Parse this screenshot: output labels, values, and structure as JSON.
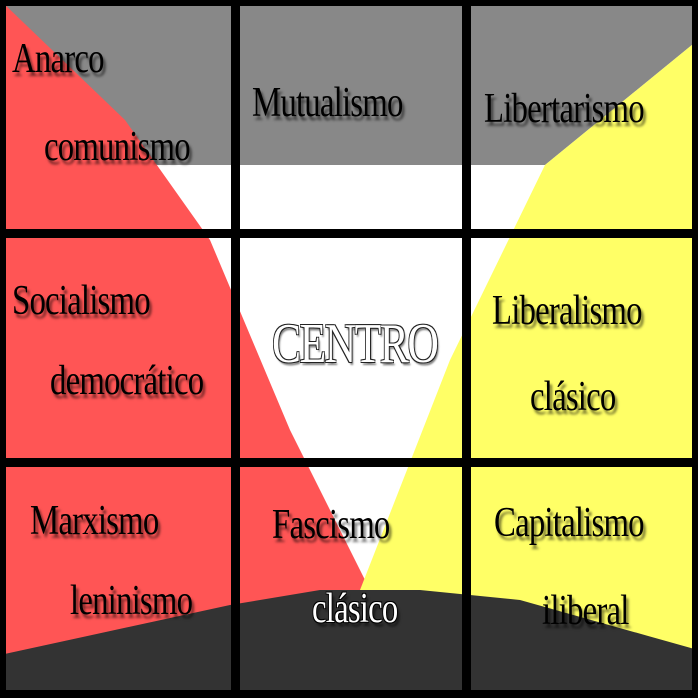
{
  "colors": {
    "red": "#ff5555",
    "yellow": "#ffff66",
    "gray": "#888888",
    "white": "#ffffff",
    "dark": "#333333",
    "grid": "#000000"
  },
  "cells": {
    "top_left": {
      "line1": "Anarco",
      "line2": "comunismo"
    },
    "top_middle": {
      "line1": "Mutualismo"
    },
    "top_right": {
      "line1": "Libertarismo"
    },
    "middle_left": {
      "line1": "Socialismo",
      "line2": "democrático"
    },
    "center": {
      "line1": "CENTRO"
    },
    "middle_right": {
      "line1": "Liberalismo",
      "line2": "clásico"
    },
    "bottom_left": {
      "line1": "Marxismo",
      "line2": "leninismo"
    },
    "bottom_middle": {
      "line1": "Fascismo",
      "line2": "clásico"
    },
    "bottom_right": {
      "line1": "Capitalismo",
      "line2": "iliberal"
    }
  }
}
